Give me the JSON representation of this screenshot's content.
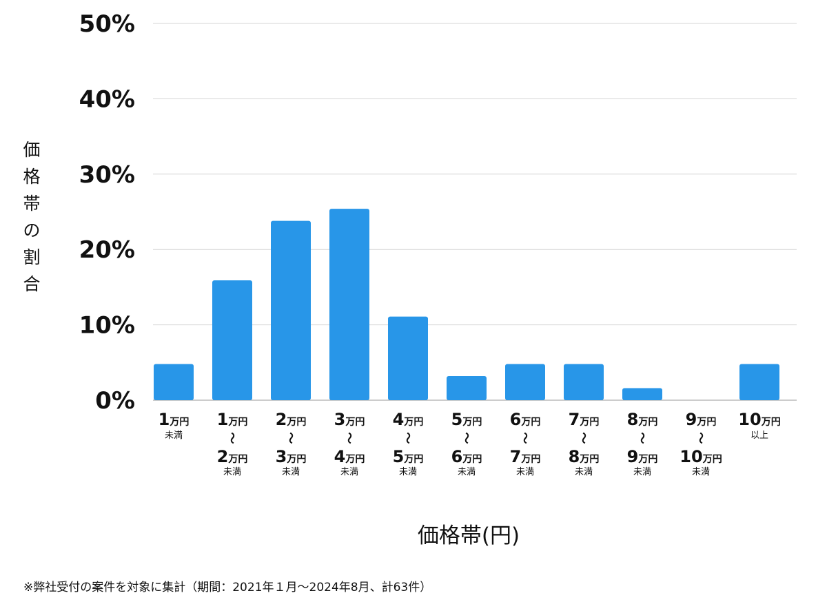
{
  "chart_data": {
    "type": "bar",
    "xlabel": "価格帯(円)",
    "ylabel": "価格帯の割合",
    "ylim": [
      0,
      50
    ],
    "yticks": [
      "0%",
      "10%",
      "20%",
      "30%",
      "40%",
      "50%"
    ],
    "grid": true,
    "bar_color": "#2896E8",
    "categories": [
      "1万円未満",
      "1万円〜2万円未満",
      "2万円〜3万円未満",
      "3万円〜4万円未満",
      "4万円〜5万円未満",
      "5万円〜6万円未満",
      "6万円〜7万円未満",
      "7万円〜8万円未満",
      "8万円〜9万円未満",
      "9万円〜10万円未満",
      "10万円以上"
    ],
    "category_labels": [
      {
        "top_num": "1",
        "top_unit": "万円",
        "note": "未満"
      },
      {
        "top_num": "1",
        "top_unit": "万円",
        "sep": "〜",
        "bottom_num": "2",
        "bottom_unit": "万円",
        "note": "未満"
      },
      {
        "top_num": "2",
        "top_unit": "万円",
        "sep": "〜",
        "bottom_num": "3",
        "bottom_unit": "万円",
        "note": "未満"
      },
      {
        "top_num": "3",
        "top_unit": "万円",
        "sep": "〜",
        "bottom_num": "4",
        "bottom_unit": "万円",
        "note": "未満"
      },
      {
        "top_num": "4",
        "top_unit": "万円",
        "sep": "〜",
        "bottom_num": "5",
        "bottom_unit": "万円",
        "note": "未満"
      },
      {
        "top_num": "5",
        "top_unit": "万円",
        "sep": "〜",
        "bottom_num": "6",
        "bottom_unit": "万円",
        "note": "未満"
      },
      {
        "top_num": "6",
        "top_unit": "万円",
        "sep": "〜",
        "bottom_num": "7",
        "bottom_unit": "万円",
        "note": "未満"
      },
      {
        "top_num": "7",
        "top_unit": "万円",
        "sep": "〜",
        "bottom_num": "8",
        "bottom_unit": "万円",
        "note": "未満"
      },
      {
        "top_num": "8",
        "top_unit": "万円",
        "sep": "〜",
        "bottom_num": "9",
        "bottom_unit": "万円",
        "note": "未満"
      },
      {
        "top_num": "9",
        "top_unit": "万円",
        "sep": "〜",
        "bottom_num": "10",
        "bottom_unit": "万円",
        "note": "未満"
      },
      {
        "top_num": "10",
        "top_unit": "万円",
        "note": "以上"
      }
    ],
    "values": [
      4.8,
      15.9,
      23.8,
      25.4,
      11.1,
      3.2,
      4.8,
      4.8,
      1.6,
      0,
      4.8
    ]
  },
  "footnote": "※弊社受付の案件を対象に集計（期間：2021年１月〜2024年8月、計63件）"
}
